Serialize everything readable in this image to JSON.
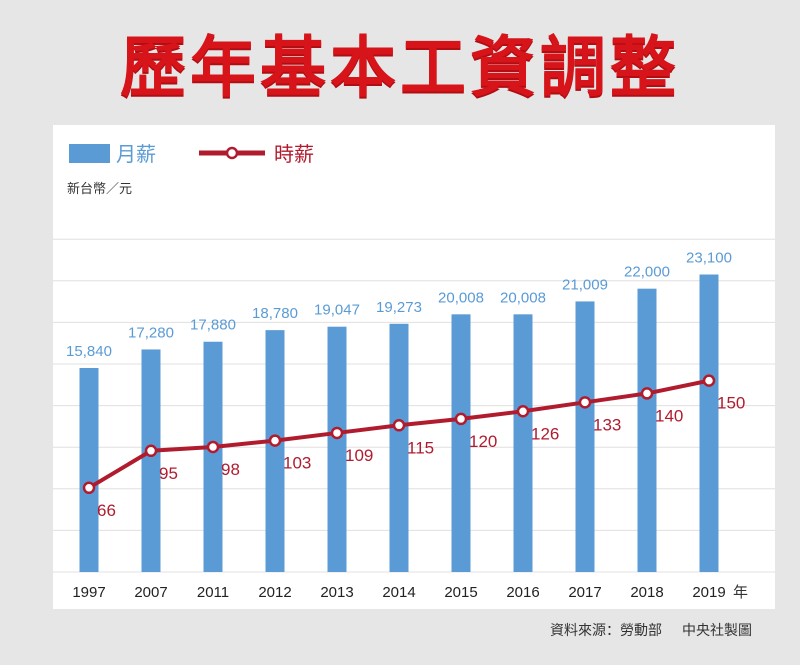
{
  "title": "歷年基本工資調整",
  "legend": {
    "bar_label": "月薪",
    "line_label": "時薪"
  },
  "unit_label": "新台幣／元",
  "year_suffix": "年",
  "source": "資料來源：勞動部",
  "credit": "中央社製圖",
  "colors": {
    "title": "#d7141a",
    "bar": "#5b9bd5",
    "bar_label": "#5b9bd5",
    "line": "#b01c2e",
    "line_label": "#b01c2e"
  },
  "chart_data": {
    "type": "bar",
    "categories": [
      "1997",
      "2007",
      "2011",
      "2012",
      "2013",
      "2014",
      "2015",
      "2016",
      "2017",
      "2018",
      "2019"
    ],
    "series": [
      {
        "name": "月薪",
        "type": "bar",
        "values": [
          15840,
          17280,
          17880,
          18780,
          19047,
          19273,
          20008,
          20008,
          21009,
          22000,
          23100
        ],
        "labels": [
          "15,840",
          "17,280",
          "17,880",
          "18,780",
          "19,047",
          "19,273",
          "20,008",
          "20,008",
          "21,009",
          "22,000",
          "23,100"
        ]
      },
      {
        "name": "時薪",
        "type": "line",
        "values": [
          66,
          95,
          98,
          103,
          109,
          115,
          120,
          126,
          133,
          140,
          150
        ],
        "labels": [
          "66",
          "95",
          "98",
          "103",
          "109",
          "115",
          "120",
          "126",
          "133",
          "140",
          "150"
        ]
      }
    ],
    "ylim_monthly": [
      0,
      26400
    ],
    "ylim_hourly": [
      0,
      243
    ],
    "grid": true,
    "legend_position": "top-left"
  }
}
